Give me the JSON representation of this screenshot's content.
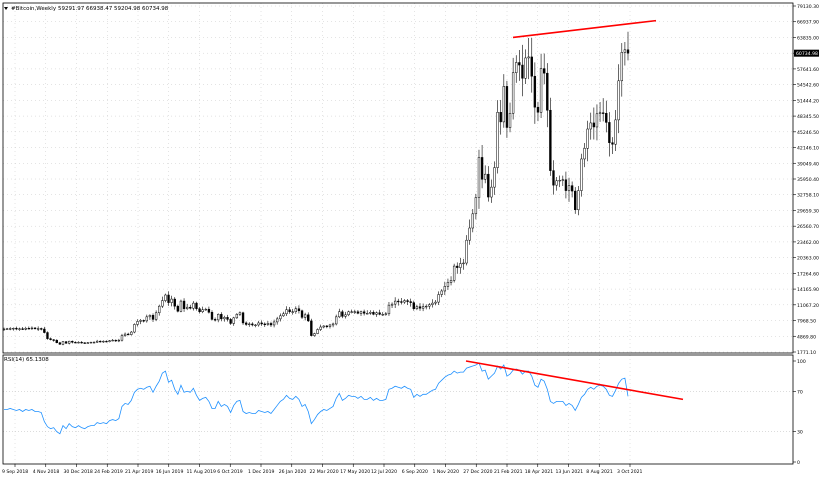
{
  "header": {
    "symbol": "#Bitcoin,Weekly",
    "ohlc": "59291.97 66938.47 59204.98 60734.98",
    "rsi_label": "RSI(14) 65.1308"
  },
  "current_price": "60734.98",
  "colors": {
    "background": "#ffffff",
    "axis": "#000000",
    "grid": "#c8c8c8",
    "candle_up": "#ffffff",
    "candle_down": "#000000",
    "candle_outline": "#000000",
    "rsi_line": "#1e90ff",
    "trend_line": "#ff0000",
    "price_tag_bg": "#000000",
    "price_tag_text": "#ffffff"
  },
  "chart_data": [
    {
      "type": "candlestick",
      "title": "#Bitcoin,Weekly",
      "price_axis_ticks": [
        "79130.30",
        "66937.90",
        "63835.00",
        "60734.98",
        "57641.60",
        "54542.60",
        "51444.20",
        "48345.50",
        "45246.50",
        "42146.10",
        "39049.40",
        "35950.40",
        "32758.10",
        "29659.30",
        "26560.70",
        "23462.00",
        "20363.00",
        "17264.60",
        "14165.90",
        "11067.20",
        "7968.50",
        "4869.80",
        "1771.10"
      ],
      "date_axis_ticks": [
        "9 Sep 2018",
        "4 Nov 2018",
        "30 Dec 2018",
        "24 Feb 2019",
        "21 Apr 2019",
        "16 Jun 2019",
        "11 Aug 2019",
        "6 Oct 2019",
        "1 Dec 2019",
        "26 Jan 2020",
        "22 Mar 2020",
        "17 May 2020",
        "12 Jul 2020",
        "6 Sep 2020",
        "1 Nov 2020",
        "27 Dec 2020",
        "21 Feb 2021",
        "18 Apr 2021",
        "13 Jun 2021",
        "8 Aug 2021",
        "3 Oct 2021"
      ],
      "ylim": [
        1771.1,
        79130.3
      ],
      "grid": true,
      "weekly_closes": [
        6300,
        6350,
        6400,
        6450,
        6300,
        6350,
        6250,
        6450,
        6400,
        6500,
        6350,
        6400,
        6300,
        5600,
        4400,
        4200,
        4100,
        3600,
        3300,
        3800,
        3500,
        3900,
        3700,
        3600,
        3700,
        3600,
        3500,
        3600,
        3700,
        3700,
        3900,
        3800,
        3900,
        3800,
        4000,
        4100,
        4000,
        4100,
        5000,
        5300,
        5200,
        5700,
        7200,
        7800,
        8000,
        7900,
        8700,
        9000,
        8200,
        9500,
        10800,
        11900,
        13000,
        11500,
        12200,
        10800,
        9800,
        11800,
        10300,
        10600,
        10400,
        11400,
        10300,
        9700,
        10100,
        10200,
        9600,
        8200,
        8100,
        9200,
        8300,
        8600,
        8200,
        7400,
        8500,
        9200,
        9500,
        7500,
        7200,
        7300,
        7100,
        7100,
        7500,
        7300,
        7200,
        7400,
        7100,
        7700,
        8300,
        8900,
        9300,
        10100,
        9700,
        9700,
        10300,
        9900,
        8600,
        9100,
        7900,
        5000,
        5400,
        6200,
        6700,
        6900,
        6800,
        7100,
        7300,
        8700,
        9700,
        8800,
        9100,
        9700,
        9700,
        9700,
        9400,
        9700,
        9400,
        9400,
        9600,
        9200,
        9500,
        9200,
        9200,
        9300,
        11000,
        11200,
        11800,
        11700,
        11600,
        11900,
        11700,
        11500,
        10300,
        10700,
        10400,
        10700,
        10800,
        11100,
        11400,
        11600,
        13100,
        13800,
        14700,
        15500,
        15900,
        18700,
        18400,
        19200,
        19300,
        23800,
        26200,
        29000,
        32200,
        40200,
        35900,
        36900,
        32300,
        34300,
        38200,
        49100,
        47200,
        54200,
        46100,
        48900,
        56900,
        58900,
        58400,
        55800,
        59800,
        60000,
        56200,
        50100,
        49100,
        57700,
        56800,
        49500,
        37600,
        34700,
        35600,
        35700,
        35800,
        33600,
        34600,
        33500,
        29800,
        33600,
        39900,
        42000,
        45800,
        47000,
        46200,
        48800,
        49000,
        48900,
        47100,
        43100,
        42800,
        47600,
        55300,
        60900,
        61400,
        60734.98
      ],
      "resistance_line": {
        "start_value": 63835.0,
        "end_value": 67800.0
      },
      "current_value": 60734.98
    },
    {
      "type": "line",
      "title": "RSI(14) 65.1308",
      "y_axis_ticks": [
        "100",
        "70",
        "30",
        "0"
      ],
      "ylim": [
        0,
        100
      ],
      "rsi_values": [
        52,
        52,
        53,
        52,
        51,
        52,
        50,
        52,
        51,
        52,
        50,
        50,
        49,
        40,
        35,
        33,
        34,
        30,
        28,
        36,
        33,
        38,
        35,
        34,
        36,
        34,
        33,
        35,
        36,
        36,
        39,
        38,
        39,
        38,
        41,
        42,
        41,
        43,
        55,
        58,
        57,
        61,
        69,
        72,
        73,
        72,
        74,
        75,
        69,
        75,
        80,
        88,
        90,
        79,
        81,
        72,
        67,
        76,
        69,
        70,
        69,
        73,
        66,
        61,
        63,
        64,
        60,
        53,
        53,
        60,
        55,
        57,
        55,
        49,
        56,
        60,
        61,
        50,
        48,
        49,
        48,
        48,
        51,
        50,
        49,
        50,
        48,
        52,
        56,
        60,
        62,
        66,
        63,
        62,
        65,
        62,
        55,
        57,
        50,
        38,
        42,
        47,
        50,
        52,
        51,
        53,
        55,
        63,
        68,
        61,
        63,
        66,
        65,
        65,
        63,
        65,
        62,
        62,
        64,
        61,
        63,
        61,
        61,
        62,
        72,
        73,
        75,
        74,
        73,
        75,
        73,
        72,
        64,
        67,
        65,
        67,
        67,
        69,
        71,
        72,
        78,
        81,
        84,
        86,
        87,
        90,
        88,
        89,
        89,
        93,
        94,
        95,
        96,
        98,
        90,
        91,
        82,
        85,
        88,
        95,
        92,
        96,
        85,
        87,
        91,
        92,
        91,
        87,
        90,
        90,
        85,
        76,
        74,
        82,
        80,
        72,
        60,
        58,
        60,
        60,
        60,
        56,
        58,
        56,
        51,
        57,
        64,
        67,
        72,
        74,
        72,
        75,
        76,
        75,
        72,
        66,
        65,
        71,
        78,
        82,
        83,
        65
      ],
      "divergence_line": {
        "start_value": 100,
        "end_value": 62
      }
    }
  ]
}
